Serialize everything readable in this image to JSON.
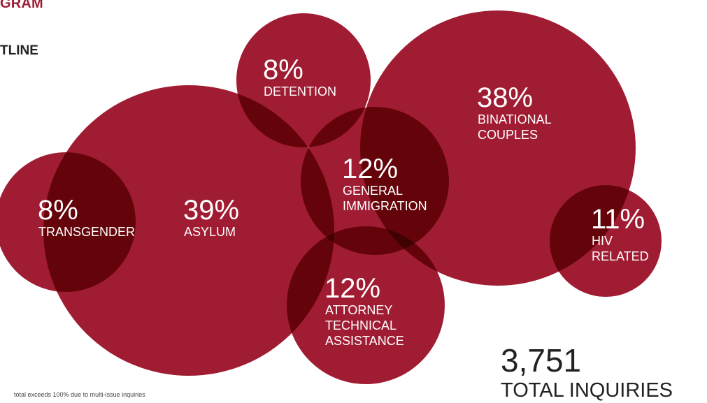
{
  "page": {
    "heading": "GRAM",
    "subheading": "TLINE",
    "footnote": "total exceeds 100% due to multi-issue inquiries"
  },
  "colors": {
    "bubble": "#a01c32",
    "bubble_text": "#ffffff",
    "heading": "#9e1c32",
    "total_text": "#222222"
  },
  "chart_data": {
    "type": "bubble",
    "title": "",
    "bubbles": [
      {
        "value": "39%",
        "label": [
          "ASYLUM"
        ]
      },
      {
        "value": "38%",
        "label": [
          "BINATIONAL",
          "COUPLES"
        ]
      },
      {
        "value": "8%",
        "label": [
          "DETENTION"
        ]
      },
      {
        "value": "12%",
        "label": [
          "ATTORNEY",
          "TECHNICAL",
          "ASSISTANCE"
        ]
      },
      {
        "value": "11%",
        "label": [
          "HIV",
          "RELATED"
        ]
      },
      {
        "value": "8%",
        "label": [
          "TRANSGENDER"
        ]
      },
      {
        "value": "12%",
        "label": [
          "GENERAL",
          "IMMIGRATION"
        ]
      }
    ],
    "total": {
      "value": "3,751",
      "label": "TOTAL INQUIRIES"
    },
    "note": "total exceeds 100% due to multi-issue inquiries"
  }
}
